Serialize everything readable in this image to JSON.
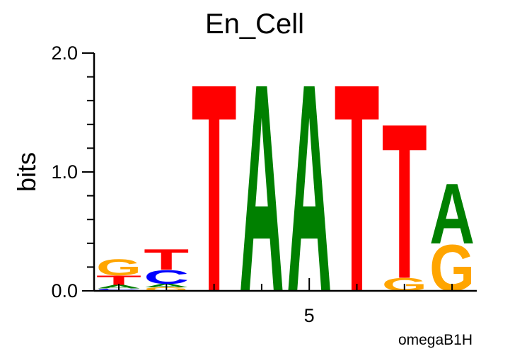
{
  "chart_data": {
    "type": "sequence-logo",
    "title": "En_Cell",
    "ylabel": "bits",
    "xlabel": "",
    "ylim": [
      0,
      2.0
    ],
    "y_ticks": [
      "0.0",
      "1.0",
      "2.0"
    ],
    "x_ticks": [
      {
        "position": 5,
        "label": "5"
      }
    ],
    "footer": "omegaB1H",
    "colors": {
      "A": "#008000",
      "C": "#0000ff",
      "G": "#ffa500",
      "T": "#ff0000"
    },
    "positions": [
      {
        "pos": 1,
        "letters": [
          {
            "base": "C",
            "bits": 0.02
          },
          {
            "base": "A",
            "bits": 0.03
          },
          {
            "base": "T",
            "bits": 0.08
          },
          {
            "base": "G",
            "bits": 0.14
          }
        ]
      },
      {
        "pos": 2,
        "letters": [
          {
            "base": "G",
            "bits": 0.03
          },
          {
            "base": "A",
            "bits": 0.03
          },
          {
            "base": "C",
            "bits": 0.12
          },
          {
            "base": "T",
            "bits": 0.18
          }
        ]
      },
      {
        "pos": 3,
        "letters": [
          {
            "base": "T",
            "bits": 1.8
          }
        ]
      },
      {
        "pos": 4,
        "letters": [
          {
            "base": "A",
            "bits": 1.8
          }
        ]
      },
      {
        "pos": 5,
        "letters": [
          {
            "base": "A",
            "bits": 1.8
          }
        ]
      },
      {
        "pos": 6,
        "letters": [
          {
            "base": "T",
            "bits": 1.8
          }
        ]
      },
      {
        "pos": 7,
        "letters": [
          {
            "base": "G",
            "bits": 0.11
          },
          {
            "base": "T",
            "bits": 1.34
          }
        ]
      },
      {
        "pos": 8,
        "letters": [
          {
            "base": "G",
            "bits": 0.4
          },
          {
            "base": "A",
            "bits": 0.52
          }
        ]
      }
    ]
  }
}
